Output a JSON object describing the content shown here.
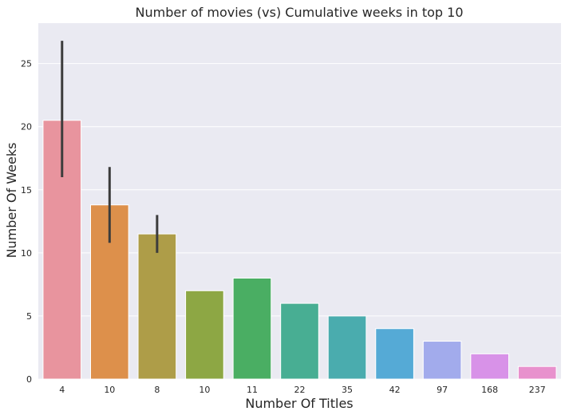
{
  "chart_data": {
    "type": "bar",
    "title": "Number of movies (vs) Cumulative weeks in top 10",
    "xlabel": "Number Of Titles",
    "ylabel": "Number Of Weeks",
    "categories": [
      "4",
      "10",
      "8",
      "10",
      "11",
      "22",
      "35",
      "42",
      "97",
      "168",
      "237"
    ],
    "values": [
      20.5,
      13.8,
      11.5,
      7,
      8,
      6,
      5,
      4,
      3,
      2,
      1
    ],
    "error_bars": [
      {
        "category_index": 0,
        "low": 16,
        "high": 26.8
      },
      {
        "category_index": 1,
        "low": 10.8,
        "high": 16.8
      },
      {
        "category_index": 2,
        "low": 10,
        "high": 13
      }
    ],
    "ylim": [
      0,
      28.2
    ],
    "yticks": [
      0,
      5,
      10,
      15,
      20,
      25
    ],
    "grid": true,
    "legend": "none",
    "colors": [
      "#e8949e",
      "#dd904b",
      "#ae9d48",
      "#8da744",
      "#4aae63",
      "#48ae93",
      "#4aacae",
      "#55aad6",
      "#a2abec",
      "#d892e8",
      "#e891cd"
    ],
    "background_color": "#eaeaf2",
    "errorbar_color": "#3c3c3c"
  }
}
